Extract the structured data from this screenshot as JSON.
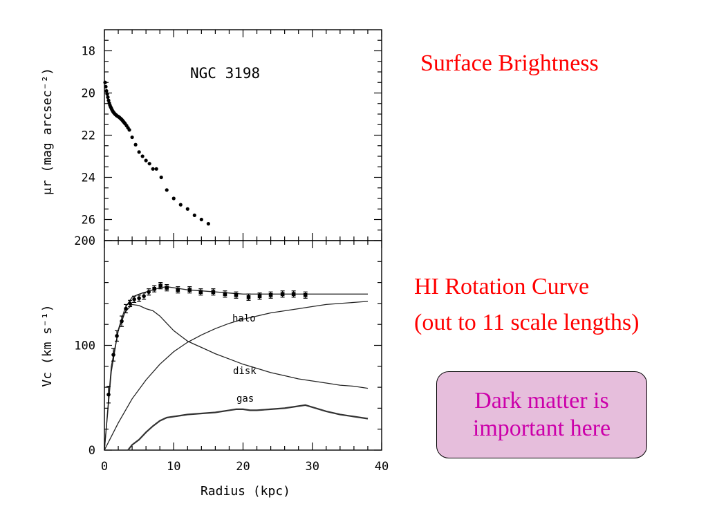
{
  "annotations": {
    "surface_brightness": "Surface Brightness",
    "rotation_curve_line1": "HI Rotation Curve",
    "rotation_curve_line2": "(out to 11 scale lengths)",
    "callout": "Dark matter is\nimportant here"
  },
  "colors": {
    "annotation_text": "#ff0000",
    "callout_fill": "#e6bedc",
    "callout_text": "#cc00aa"
  },
  "chart_data": [
    {
      "type": "scatter",
      "title": "NGC 3198",
      "xlabel": "",
      "ylabel": "μr (mag arcsec⁻²)",
      "xlim": [
        0,
        40
      ],
      "ylim": [
        27,
        17
      ],
      "y_inverted": true,
      "yticks": [
        18,
        20,
        22,
        24,
        26
      ],
      "y_tick_labels": [
        "18",
        "20",
        "22",
        "24",
        "26"
      ],
      "series": [
        {
          "x": [
            0.1,
            0.2,
            0.3,
            0.4,
            0.5,
            0.6,
            0.7,
            0.8,
            0.9,
            1.0,
            1.1,
            1.2,
            1.3,
            1.4,
            1.5,
            1.6,
            1.7,
            1.8,
            1.9,
            2.0,
            2.1,
            2.2,
            2.3,
            2.4,
            2.5,
            2.6,
            2.7,
            2.8,
            2.9,
            3.0,
            3.2,
            3.4,
            3.6,
            4.0,
            4.5,
            5.0,
            5.5,
            6.0,
            6.5,
            7.0,
            7.5,
            8.2,
            9.0,
            10.0,
            11.0,
            12.0,
            13.0,
            14.0,
            15.0
          ],
          "y": [
            19.5,
            19.7,
            19.9,
            20.05,
            20.2,
            20.35,
            20.48,
            20.58,
            20.66,
            20.73,
            20.8,
            20.86,
            20.91,
            20.95,
            20.99,
            21.02,
            21.05,
            21.08,
            21.1,
            21.12,
            21.14,
            21.17,
            21.2,
            21.23,
            21.26,
            21.3,
            21.34,
            21.38,
            21.42,
            21.46,
            21.55,
            21.65,
            21.75,
            22.1,
            22.45,
            22.8,
            23.0,
            23.2,
            23.35,
            23.6,
            23.6,
            24.0,
            24.6,
            25.0,
            25.3,
            25.5,
            25.8,
            26.0,
            26.2
          ]
        }
      ]
    },
    {
      "type": "line",
      "title": "",
      "xlabel": "Radius (kpc)",
      "ylabel": "Vc (km s⁻¹)",
      "xlim": [
        0,
        40
      ],
      "ylim": [
        0,
        200
      ],
      "xticks": [
        0,
        10,
        20,
        30,
        40
      ],
      "x_tick_labels": [
        "0",
        "10",
        "20",
        "30",
        "40"
      ],
      "yticks": [
        0,
        100,
        200
      ],
      "y_tick_labels": [
        "0",
        "100",
        "200"
      ],
      "observed": {
        "x": [
          0.6,
          1.3,
          1.8,
          2.5,
          3.1,
          3.7,
          4.3,
          5.0,
          5.7,
          6.4,
          7.2,
          8.1,
          9.0,
          10.6,
          12.3,
          13.9,
          15.7,
          17.4,
          19.0,
          20.8,
          22.4,
          24.0,
          25.7,
          27.3,
          29.0
        ],
        "v": [
          53,
          91,
          109,
          123,
          135,
          140,
          144,
          145,
          147,
          151,
          154,
          157,
          155,
          153,
          153,
          151,
          151,
          149,
          148,
          146,
          147,
          148,
          149,
          149,
          148
        ],
        "err": [
          8,
          6,
          5,
          5,
          4,
          3,
          3,
          3,
          3,
          3,
          3,
          3,
          3,
          3,
          3,
          3,
          3,
          3,
          3,
          3,
          3,
          3,
          3,
          3,
          3
        ]
      },
      "series": [
        {
          "name": "",
          "x": [
            0,
            1,
            2,
            3,
            4,
            5,
            6,
            7,
            8,
            9,
            10,
            12,
            14,
            16,
            18,
            20,
            22,
            24,
            26,
            28,
            30,
            32,
            34,
            36,
            38
          ],
          "v": [
            0,
            75,
            115,
            136,
            146,
            149,
            151,
            153,
            155,
            156,
            155,
            153,
            152,
            151,
            150,
            149,
            149,
            149,
            149,
            149,
            149,
            149,
            149,
            149,
            149
          ]
        },
        {
          "name": "halo",
          "x": [
            0,
            2,
            4,
            6,
            8,
            10,
            12,
            14,
            16,
            18,
            20,
            22,
            24,
            26,
            28,
            30,
            32,
            34,
            36,
            38
          ],
          "v": [
            0,
            26,
            49,
            67,
            82,
            94,
            103,
            110,
            116,
            121,
            125,
            128,
            131,
            133,
            135,
            137,
            139,
            140,
            141,
            142
          ]
        },
        {
          "name": "disk",
          "x": [
            0,
            1,
            2,
            3,
            4,
            5,
            6,
            7,
            8,
            9,
            10,
            11,
            12,
            13,
            14,
            16,
            18,
            20,
            22,
            24,
            26,
            28,
            30,
            32,
            34,
            36,
            38
          ],
          "v": [
            0,
            80,
            114,
            132,
            139,
            138,
            135,
            133,
            128,
            121,
            114,
            109,
            104,
            101,
            98,
            92,
            87,
            82,
            78,
            74,
            71,
            68,
            66,
            64,
            62,
            61,
            59
          ]
        },
        {
          "name": "gas",
          "x": [
            3.4,
            4,
            5,
            6,
            7,
            8,
            9,
            10,
            11,
            12,
            14,
            16,
            18,
            19,
            20,
            21,
            22,
            24,
            26,
            28,
            29,
            30,
            32,
            34,
            36,
            38
          ],
          "v": [
            0,
            5,
            10,
            17,
            23,
            28,
            31,
            32,
            33,
            34,
            35,
            36,
            38,
            39,
            39,
            38,
            38,
            39,
            40,
            42,
            43,
            41,
            37,
            34,
            32,
            30
          ]
        }
      ],
      "curve_labels": {
        "halo": "halo",
        "disk": "disk",
        "gas": "gas"
      }
    }
  ]
}
